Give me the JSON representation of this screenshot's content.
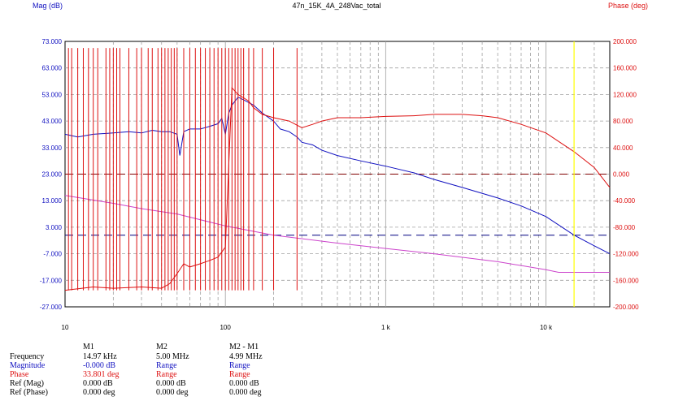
{
  "chart_data": {
    "type": "line",
    "title": "47n_15K_4A_248Vac_total",
    "ylabel_left": "Mag (dB)",
    "ylabel_right": "Phase (deg)",
    "x_scale": "log",
    "xlim": [
      10,
      25000
    ],
    "ylim_left": [
      -27,
      73
    ],
    "ylim_right": [
      -200,
      200
    ],
    "x_ticks": [
      {
        "value": 10,
        "label": "10"
      },
      {
        "value": 100,
        "label": "100"
      },
      {
        "value": 1000,
        "label": "1 k"
      },
      {
        "value": 10000,
        "label": "10 k"
      }
    ],
    "y_ticks_left": [
      "73.000",
      "63.000",
      "53.000",
      "43.000",
      "33.000",
      "23.000",
      "13.000",
      "3.000",
      "-7.000",
      "-17.000",
      "-27.000"
    ],
    "y_ticks_right": [
      "200.000",
      "160.000",
      "120.000",
      "80.000",
      "40.000",
      "0.000",
      "-40.000",
      "-80.000",
      "-120.000",
      "-160.000",
      "-200.000"
    ],
    "grid": true,
    "reference_lines": [
      {
        "axis": "left",
        "value": 0,
        "color": "#000080"
      },
      {
        "axis": "right",
        "value": 0,
        "color": "#800000"
      }
    ],
    "marker": {
      "x": 14970,
      "color": "#ffff00"
    },
    "series": [
      {
        "axis": "left",
        "color": "#1010c0",
        "points": [
          [
            10,
            38
          ],
          [
            12,
            37
          ],
          [
            15,
            38
          ],
          [
            20,
            38.5
          ],
          [
            25,
            39
          ],
          [
            30,
            38.5
          ],
          [
            35,
            39.5
          ],
          [
            40,
            39
          ],
          [
            45,
            39
          ],
          [
            50,
            38
          ],
          [
            52,
            30
          ],
          [
            55,
            39
          ],
          [
            60,
            40
          ],
          [
            70,
            40
          ],
          [
            80,
            41
          ],
          [
            90,
            42
          ],
          [
            95,
            44
          ],
          [
            100,
            38
          ],
          [
            105,
            46
          ],
          [
            110,
            49
          ],
          [
            120,
            52
          ],
          [
            130,
            51
          ],
          [
            150,
            49
          ],
          [
            170,
            46
          ],
          [
            200,
            43
          ],
          [
            220,
            40
          ],
          [
            250,
            39
          ],
          [
            280,
            37
          ],
          [
            300,
            35
          ],
          [
            350,
            34
          ],
          [
            400,
            32
          ],
          [
            500,
            30
          ],
          [
            700,
            28
          ],
          [
            1000,
            26
          ],
          [
            1500,
            23.5
          ],
          [
            2000,
            21
          ],
          [
            3000,
            18
          ],
          [
            5000,
            14
          ],
          [
            7000,
            11
          ],
          [
            10000,
            7
          ],
          [
            14970,
            0
          ],
          [
            20000,
            -4
          ],
          [
            25000,
            -7
          ]
        ]
      },
      {
        "axis": "left",
        "color": "#cc44cc",
        "points": [
          [
            10,
            15
          ],
          [
            20,
            12
          ],
          [
            30,
            10
          ],
          [
            50,
            8
          ],
          [
            100,
            3.5
          ],
          [
            200,
            0
          ],
          [
            500,
            -3
          ],
          [
            1000,
            -5
          ],
          [
            2000,
            -7
          ],
          [
            5000,
            -10
          ],
          [
            10000,
            -13
          ],
          [
            12000,
            -14
          ],
          [
            25000,
            -14
          ]
        ]
      },
      {
        "axis": "right",
        "color": "#dd1111",
        "points": [
          [
            10,
            -175
          ],
          [
            15,
            -170
          ],
          [
            20,
            -172
          ],
          [
            30,
            -170
          ],
          [
            40,
            -172
          ],
          [
            45,
            -165
          ],
          [
            50,
            -150
          ],
          [
            55,
            -135
          ],
          [
            60,
            -140
          ],
          [
            70,
            -135
          ],
          [
            80,
            -130
          ],
          [
            90,
            -125
          ],
          [
            100,
            -110
          ],
          [
            110,
            130
          ],
          [
            120,
            120
          ],
          [
            130,
            115
          ],
          [
            140,
            110
          ],
          [
            150,
            100
          ],
          [
            170,
            90
          ],
          [
            200,
            85
          ],
          [
            250,
            80
          ],
          [
            300,
            70
          ],
          [
            350,
            75
          ],
          [
            400,
            80
          ],
          [
            500,
            85
          ],
          [
            700,
            85
          ],
          [
            1000,
            87
          ],
          [
            1500,
            88
          ],
          [
            2000,
            90
          ],
          [
            3000,
            90
          ],
          [
            4000,
            88
          ],
          [
            5000,
            85
          ],
          [
            7000,
            75
          ],
          [
            10000,
            62
          ],
          [
            14970,
            33.8
          ],
          [
            20000,
            10
          ],
          [
            25000,
            -20
          ]
        ]
      },
      {
        "axis": "right",
        "color": "#dd1111",
        "style": "spikes",
        "x": [
          10.5,
          11,
          12,
          13,
          14,
          15,
          16,
          18,
          19,
          20,
          21,
          22,
          25,
          28,
          30,
          33,
          35,
          38,
          40,
          42,
          44,
          46,
          48,
          50,
          55,
          60,
          65,
          70,
          75,
          80,
          85,
          90,
          95,
          100,
          105,
          110,
          115,
          120,
          125,
          130,
          140,
          150,
          170,
          200,
          280
        ]
      }
    ]
  },
  "readout": {
    "col_headers": [
      "",
      "M1",
      "M2",
      "M2 - M1"
    ],
    "rows": [
      {
        "label": "Frequency",
        "color": "#000000",
        "values": [
          "14.97 kHz",
          "5.00 MHz",
          "4.99 MHz"
        ]
      },
      {
        "label": "Magnitude",
        "color": "#1010c0",
        "values": [
          "-0.000 dB",
          "Range",
          "Range"
        ]
      },
      {
        "label": "Phase",
        "color": "#dd1111",
        "values": [
          "33.801 deg",
          "Range",
          "Range"
        ]
      },
      {
        "label": "Ref (Mag)",
        "color": "#000000",
        "values": [
          "0.000 dB",
          "0.000 dB",
          "0.000 dB"
        ]
      },
      {
        "label": "Ref (Phase)",
        "color": "#000000",
        "values": [
          "0.000 deg",
          "0.000 deg",
          "0.000 deg"
        ]
      }
    ]
  }
}
